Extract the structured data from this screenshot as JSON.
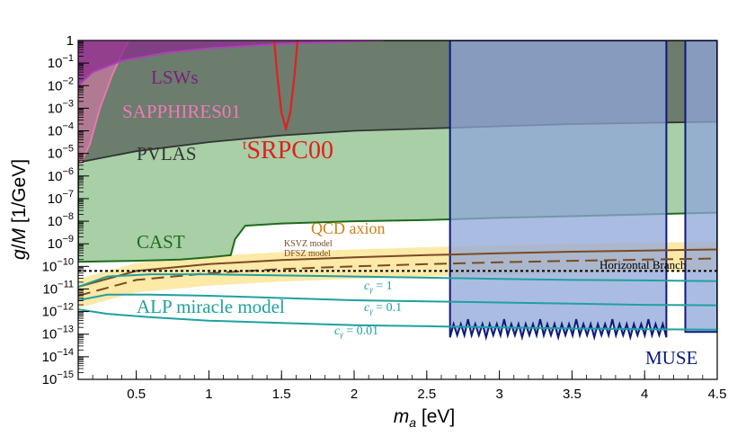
{
  "chart_data": {
    "type": "area",
    "xlabel": "m_a [eV]",
    "ylabel": "g/M [1/GeV]",
    "xlim": [
      0.1,
      4.5
    ],
    "ylim_log10": [
      -15,
      0
    ],
    "y_scale": "log",
    "x_ticks": [
      "0.5",
      "1",
      "1.5",
      "2",
      "2.5",
      "3",
      "3.5",
      "4",
      "4.5"
    ],
    "y_ticks": [
      "10^{-15}",
      "10^{-14}",
      "10^{-13}",
      "10^{-12}",
      "10^{-11}",
      "10^{-10}",
      "10^{-9}",
      "10^{-8}",
      "10^{-7}",
      "10^{-6}",
      "10^{-5}",
      "10^{-4}",
      "10^{-3}",
      "10^{-2}",
      "10^{-1}",
      "1"
    ],
    "colors": {
      "pvlas": "#555b57",
      "lsws": "#8a2c8c",
      "sapphires": "#e878b0",
      "srpc": "#e02020",
      "cast": "#1e6b1e",
      "cast_fill": "#a8cfa6",
      "qcd_band": "#fde9a8",
      "ksvz": "#7a4a22",
      "muse": "#0c1a7a",
      "muse_fill": "#8fa6d8",
      "alp": "#20a0a0",
      "horizontal_branch": "#000000"
    },
    "regions": [
      {
        "name": "PVLAS",
        "label": "PVLAS",
        "color": "#555b57",
        "x": [
          0.1,
          0.5,
          1.0,
          1.5,
          2.0,
          2.5,
          3.0,
          3.5,
          4.0,
          4.5
        ],
        "log10_lower": [
          -5.4,
          -4.9,
          -4.5,
          -4.2,
          -4.0,
          -3.9,
          -3.8,
          -3.7,
          -3.65,
          -3.6
        ]
      },
      {
        "name": "LSWs",
        "label": "LSWs",
        "color": "#8a2c8c",
        "x": [
          0.1,
          0.2,
          0.4,
          0.7,
          1.0,
          1.5,
          2.0,
          2.2
        ],
        "log10_lower": [
          -2.0,
          -1.4,
          -0.9,
          -0.55,
          -0.35,
          -0.15,
          -0.05,
          0.0
        ]
      },
      {
        "name": "SAPPHIRES01",
        "label": "SAPPHIRES01",
        "color": "#e878b0",
        "x": [
          0.1,
          0.12,
          0.18,
          0.25,
          0.33,
          0.4,
          0.45,
          0.48
        ],
        "log10_lower": [
          -5.2,
          -5.4,
          -4.6,
          -3.0,
          -1.6,
          -0.6,
          0.0,
          0.0
        ]
      },
      {
        "name": "SRPC00",
        "label": "SRPC00",
        "label_prefix": "t",
        "color": "#e02020",
        "x": [
          1.45,
          1.47,
          1.5,
          1.53,
          1.56,
          1.59,
          1.61
        ],
        "log10_lower": [
          0.0,
          -1.5,
          -3.2,
          -3.9,
          -3.2,
          -1.5,
          0.0
        ]
      },
      {
        "name": "CAST",
        "label": "CAST",
        "color": "#1e6b1e",
        "x": [
          0.1,
          0.5,
          0.8,
          1.0,
          1.15,
          1.18,
          1.25,
          1.5,
          2.0,
          2.5,
          3.0,
          3.5,
          4.0,
          4.5
        ],
        "log10_lower": [
          -9.8,
          -9.75,
          -9.7,
          -9.6,
          -9.5,
          -8.8,
          -8.2,
          -8.1,
          -8.0,
          -7.95,
          -7.85,
          -7.78,
          -7.7,
          -7.62
        ]
      },
      {
        "name": "MUSE",
        "label": "MUSE",
        "color": "#0c1a7a",
        "x_range": [
          2.66,
          4.15
        ],
        "x_range_2": [
          4.28,
          4.5
        ],
        "log10_lower": -12.9
      }
    ],
    "lines": [
      {
        "name": "QCD axion",
        "label": "QCD axion",
        "color": "#d08010"
      },
      {
        "name": "KSVZ model",
        "label": "KSVZ model",
        "color": "#7a4a22",
        "x": [
          0.1,
          0.5,
          1.0,
          1.5,
          2.0,
          2.5,
          3.0,
          3.5,
          4.0,
          4.5
        ],
        "log10_y": [
          -10.9,
          -10.2,
          -9.9,
          -9.72,
          -9.6,
          -9.5,
          -9.42,
          -9.35,
          -9.3,
          -9.25
        ]
      },
      {
        "name": "DFSZ model",
        "label": "DFSZ model",
        "color": "#7a4a22",
        "x": [
          0.1,
          0.5,
          1.0,
          1.5,
          2.0,
          2.5,
          3.0,
          3.5,
          4.0,
          4.5
        ],
        "log10_y": [
          -11.3,
          -10.6,
          -10.3,
          -10.12,
          -10.0,
          -9.9,
          -9.82,
          -9.75,
          -9.7,
          -9.65
        ]
      },
      {
        "name": "Horizontal Branch",
        "label": "Horizontal Branch",
        "color": "#000000",
        "log10_y": -10.2
      },
      {
        "name": "ALP c=1",
        "label": "c_γ = 1",
        "color": "#20a0a0",
        "x": [
          0.1,
          0.3,
          0.6,
          1.0,
          1.5,
          2.0,
          2.5,
          3.0,
          3.5,
          4.0,
          4.5
        ],
        "log10_y": [
          -10.9,
          -10.45,
          -10.35,
          -10.35,
          -10.4,
          -10.45,
          -10.5,
          -10.55,
          -10.6,
          -10.62,
          -10.65
        ]
      },
      {
        "name": "ALP c=0.1",
        "label": "c_γ = 0.1",
        "color": "#20a0a0",
        "x": [
          0.1,
          0.3,
          0.6,
          1.0,
          1.5,
          2.0,
          2.5,
          3.0,
          3.5,
          4.0,
          4.5
        ],
        "log10_y": [
          -11.5,
          -11.25,
          -11.25,
          -11.3,
          -11.4,
          -11.5,
          -11.55,
          -11.6,
          -11.65,
          -11.7,
          -11.72
        ]
      },
      {
        "name": "ALP c=0.01",
        "label": "c_γ = 0.01",
        "color": "#20a0a0",
        "x": [
          0.1,
          0.3,
          0.6,
          1.0,
          1.5,
          2.0,
          2.5,
          3.0,
          3.5,
          4.0,
          4.5
        ],
        "log10_y": [
          -11.9,
          -12.1,
          -12.25,
          -12.4,
          -12.5,
          -12.6,
          -12.65,
          -12.7,
          -12.75,
          -12.78,
          -12.8
        ]
      }
    ],
    "annotations": [
      "ALP miracle model"
    ]
  }
}
